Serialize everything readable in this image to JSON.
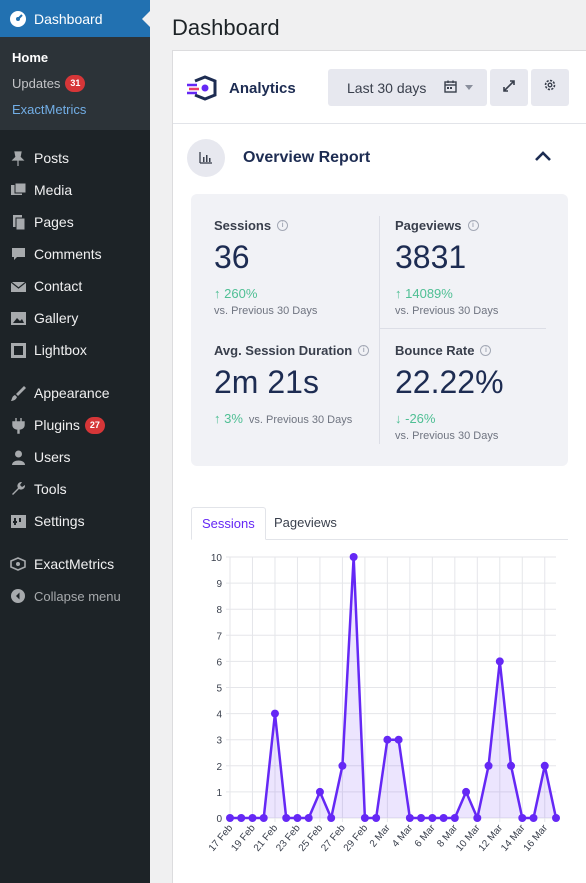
{
  "sidebar": {
    "dashboard_label": "Dashboard",
    "submenu": [
      {
        "label": "Home",
        "state": "current"
      },
      {
        "label": "Updates",
        "state": "normal",
        "badge": "31"
      },
      {
        "label": "ExactMetrics",
        "state": "active"
      }
    ],
    "items_group1": [
      {
        "label": "Posts",
        "icon": "pin-icon"
      },
      {
        "label": "Media",
        "icon": "media-icon"
      },
      {
        "label": "Pages",
        "icon": "pages-icon"
      },
      {
        "label": "Comments",
        "icon": "comment-icon"
      },
      {
        "label": "Contact",
        "icon": "mail-icon"
      },
      {
        "label": "Gallery",
        "icon": "gallery-icon"
      },
      {
        "label": "Lightbox",
        "icon": "lightbox-icon"
      }
    ],
    "items_group2": [
      {
        "label": "Appearance",
        "icon": "brush-icon"
      },
      {
        "label": "Plugins",
        "icon": "plugin-icon",
        "badge": "27"
      },
      {
        "label": "Users",
        "icon": "user-icon"
      },
      {
        "label": "Tools",
        "icon": "wrench-icon"
      },
      {
        "label": "Settings",
        "icon": "settings-icon"
      }
    ],
    "exactmetrics_label": "ExactMetrics",
    "collapse_label": "Collapse menu"
  },
  "page": {
    "title": "Dashboard"
  },
  "widget": {
    "brand": "Analytics",
    "date_range": "Last 30 days",
    "report_title": "Overview Report"
  },
  "stats": {
    "sessions": {
      "label": "Sessions",
      "value": "36",
      "change": "260%",
      "vs": "vs. Previous 30 Days"
    },
    "pageviews": {
      "label": "Pageviews",
      "value": "3831",
      "change": "14089%",
      "vs": "vs. Previous 30 Days"
    },
    "duration": {
      "label": "Avg. Session Duration",
      "value": "2m 21s",
      "change": "3%",
      "vs": "vs. Previous 30 Days"
    },
    "bounce": {
      "label": "Bounce Rate",
      "value": "22.22%",
      "change": "-26%",
      "vs": "vs. Previous 30 Days"
    }
  },
  "tabs": [
    {
      "label": "Sessions",
      "active": true
    },
    {
      "label": "Pageviews",
      "active": false
    }
  ],
  "colors": {
    "accent": "#6528f5",
    "wp_blue": "#2271b1",
    "sidebar": "#1d2327",
    "up": "#4fbf94"
  },
  "chart_data": {
    "type": "area",
    "x": [
      "17 Feb",
      "18 Feb",
      "19 Feb",
      "20 Feb",
      "21 Feb",
      "22 Feb",
      "23 Feb",
      "24 Feb",
      "25 Feb",
      "26 Feb",
      "27 Feb",
      "28 Feb",
      "29 Feb",
      "1 Mar",
      "2 Mar",
      "3 Mar",
      "4 Mar",
      "5 Mar",
      "6 Mar",
      "7 Mar",
      "8 Mar",
      "9 Mar",
      "10 Mar",
      "11 Mar",
      "12 Mar",
      "13 Mar",
      "14 Mar",
      "15 Mar",
      "16 Mar",
      "17 Mar"
    ],
    "tick_labels": [
      "17 Feb",
      "19 Feb",
      "21 Feb",
      "23 Feb",
      "25 Feb",
      "27 Feb",
      "29 Feb",
      "2 Mar",
      "4 Mar",
      "6 Mar",
      "8 Mar",
      "10 Mar",
      "12 Mar",
      "14 Mar",
      "16 Mar"
    ],
    "values": [
      0,
      0,
      0,
      0,
      4,
      0,
      0,
      0,
      1,
      0,
      2,
      10,
      0,
      0,
      3,
      3,
      0,
      0,
      0,
      0,
      0,
      1,
      0,
      2,
      6,
      2,
      0,
      0,
      2,
      0
    ],
    "yticks": [
      0,
      1,
      2,
      3,
      4,
      5,
      6,
      7,
      8,
      9,
      10
    ],
    "ylim": [
      0,
      10
    ],
    "grid": true,
    "title": "",
    "xlabel": "",
    "ylabel": ""
  }
}
